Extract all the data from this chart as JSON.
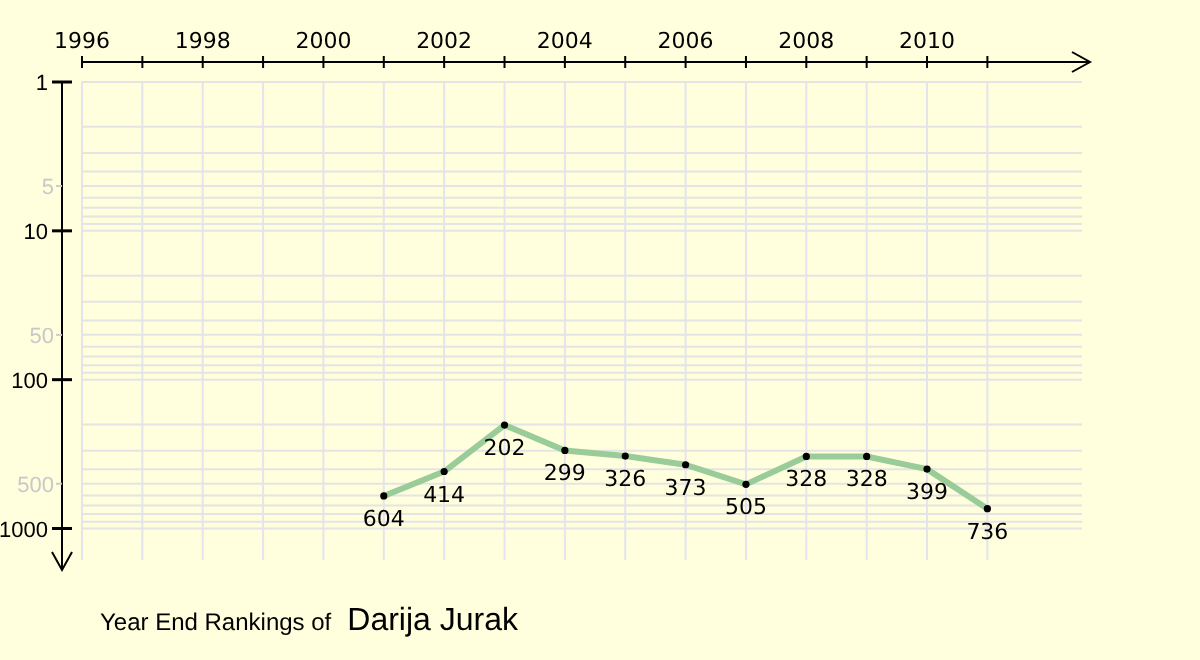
{
  "chart_data": {
    "type": "line",
    "title": "Year End Rankings of",
    "subtitle": "Darija Jurak",
    "x": [
      2001,
      2002,
      2003,
      2004,
      2005,
      2006,
      2007,
      2008,
      2009,
      2010,
      2011
    ],
    "series": [
      {
        "color": "#99cc99",
        "values": [
          604,
          414,
          202,
          299,
          326,
          373,
          505,
          328,
          328,
          399,
          736
        ]
      }
    ],
    "xlim": [
      1996,
      2012.7
    ],
    "xticks": [
      1996,
      {
        "value": 1997,
        "label": null
      },
      1998,
      {
        "value": 1999,
        "label": null
      },
      2000,
      {
        "value": 2001,
        "label": null
      },
      2002,
      {
        "value": 2003,
        "label": null
      },
      2004,
      {
        "value": 2005,
        "label": null
      },
      2006,
      {
        "value": 2007,
        "label": null
      },
      2008,
      {
        "value": 2009,
        "label": null
      },
      2010,
      {
        "value": 2011,
        "label": null
      }
    ],
    "ylim": [
      1900,
      1
    ],
    "yticks": [
      1,
      5,
      10,
      50,
      100,
      500,
      1000
    ],
    "log": "y",
    "grid": true,
    "marker": "circle",
    "data_labels": true
  }
}
